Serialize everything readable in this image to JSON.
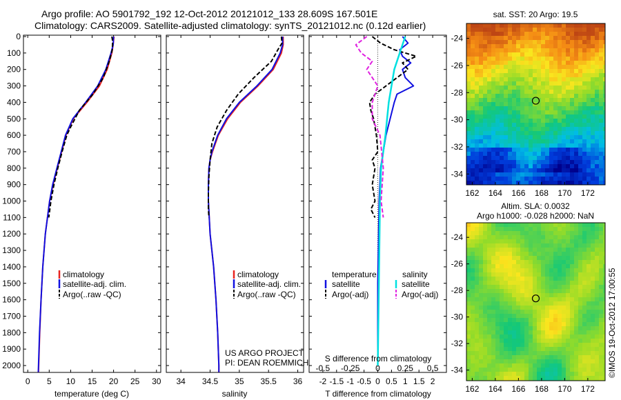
{
  "header": {
    "line1": "Argo profile: AO 5901792_192 12-Oct-2012 20121012_133 28.609S 167.501E",
    "line2": "Climatology: CARS2009. Satellite-adjusted climatology: synTS_20121012.nc (0.12d earlier)"
  },
  "colors": {
    "climatology": "#e8231f",
    "satellite": "#1010e0",
    "argo": "#000000",
    "salinity_sat": "#00e0e0",
    "salinity_argo": "#e020e0"
  },
  "chart_data": [
    {
      "type": "line",
      "id": "temperature",
      "xlabel": "temperature (deg C)",
      "ylabel": "",
      "xlim": [
        -1,
        31
      ],
      "ylim": [
        2060,
        0
      ],
      "xticks": [
        0,
        5,
        10,
        15,
        20,
        25,
        30
      ],
      "yticks": [
        0,
        100,
        200,
        300,
        400,
        500,
        600,
        700,
        800,
        900,
        1000,
        1100,
        1200,
        1300,
        1400,
        1500,
        1600,
        1700,
        1800,
        1900,
        2000
      ],
      "legend": [
        "climatology",
        "satellite-adj. clim.",
        "Argo(..raw -QC)"
      ],
      "series": [
        {
          "name": "climatology",
          "depth": [
            0,
            50,
            100,
            200,
            300,
            400,
            500,
            600,
            700,
            800,
            900,
            1000,
            1200,
            1400,
            1600,
            1800,
            2000,
            2040
          ],
          "values": [
            20.1,
            19.9,
            19.6,
            18.5,
            16.7,
            13.8,
            10.6,
            8.9,
            7.9,
            6.9,
            5.9,
            5.1,
            4.1,
            3.5,
            3.1,
            2.8,
            2.55,
            2.5
          ]
        },
        {
          "name": "satellite-adj. clim.",
          "depth": [
            0,
            50,
            100,
            200,
            300,
            400,
            500,
            600,
            700,
            800,
            900,
            1000,
            1200,
            1400,
            1600,
            1800,
            2000,
            2040
          ],
          "values": [
            20.0,
            19.9,
            19.4,
            18.2,
            16.3,
            13.5,
            10.5,
            8.8,
            7.8,
            6.8,
            5.8,
            5.1,
            4.1,
            3.5,
            3.1,
            2.75,
            2.5,
            2.45
          ]
        },
        {
          "name": "Argo(..raw -QC)",
          "depth": [
            0,
            30,
            80,
            150,
            250,
            350,
            450,
            500,
            550,
            600,
            700,
            800,
            900,
            1000,
            1100
          ],
          "values": [
            19.6,
            19.8,
            19.7,
            19.0,
            17.6,
            15.2,
            12.0,
            11.0,
            10.0,
            9.1,
            8.0,
            7.0,
            6.1,
            5.4,
            4.9
          ]
        }
      ]
    },
    {
      "type": "line",
      "id": "salinity",
      "xlabel": "salinity",
      "ylabel": "",
      "xlim": [
        33.75,
        36.1
      ],
      "ylim": [
        2060,
        0
      ],
      "xticks": [
        34,
        34.5,
        35,
        35.5,
        36
      ],
      "legend": [
        "climatology",
        "satellite-adj. clim.",
        "Argo(..raw -QC)"
      ],
      "series": [
        {
          "name": "climatology",
          "depth": [
            0,
            50,
            100,
            200,
            300,
            400,
            500,
            600,
            700,
            750,
            800,
            900,
            1000,
            1200,
            1400,
            1600,
            1800,
            2000,
            2040
          ],
          "values": [
            35.75,
            35.75,
            35.72,
            35.58,
            35.32,
            35.02,
            34.8,
            34.64,
            34.54,
            34.5,
            34.48,
            34.47,
            34.47,
            34.5,
            34.56,
            34.6,
            34.63,
            34.65,
            34.65
          ]
        },
        {
          "name": "satellite-adj. clim.",
          "depth": [
            0,
            50,
            100,
            200,
            300,
            400,
            500,
            600,
            700,
            750,
            800,
            900,
            1000,
            1200,
            1400,
            1600,
            1800,
            2000,
            2040
          ],
          "values": [
            35.74,
            35.74,
            35.7,
            35.56,
            35.3,
            35.0,
            34.78,
            34.63,
            34.53,
            34.5,
            34.48,
            34.47,
            34.47,
            34.5,
            34.56,
            34.6,
            34.63,
            34.65,
            34.65
          ]
        },
        {
          "name": "Argo(..raw -QC)",
          "depth": [
            0,
            40,
            80,
            150,
            250,
            350,
            450,
            550,
            650,
            750,
            850,
            950,
            1050,
            1100
          ],
          "values": [
            35.72,
            35.73,
            35.66,
            35.55,
            35.25,
            34.98,
            34.78,
            34.62,
            34.53,
            34.5,
            34.48,
            34.47,
            34.47,
            34.48
          ]
        }
      ],
      "annotations": [
        "US ARGO PROJECT",
        "PI: DEAN ROEMMICH"
      ]
    },
    {
      "type": "line",
      "id": "differences",
      "xlabel": "T difference from climatology",
      "xlabel2": "S difference from climatology",
      "xlim": [
        -2.5,
        2.5
      ],
      "xticks": [
        -2,
        -1.5,
        -1,
        -0.5,
        0,
        0.5,
        1,
        1.5,
        2
      ],
      "xticks2": [
        "-0.5",
        "-0.25",
        "0",
        "0.25",
        "0.5"
      ],
      "legend_headers": [
        "temperature",
        "salinity"
      ],
      "legend": [
        "satellite",
        "Argo(-adj)",
        "satellite",
        "Argo(-adj)"
      ],
      "series": [
        {
          "name": "satellite (T)",
          "depth": [
            0,
            40,
            80,
            120,
            160,
            200,
            250,
            300,
            350,
            400,
            500,
            600,
            700,
            800,
            1000,
            1500,
            2000
          ],
          "values": [
            0.9,
            1.1,
            0.8,
            0.9,
            1.2,
            0.9,
            1.0,
            1.3,
            0.7,
            0.6,
            0.45,
            0.3,
            0.2,
            0.1,
            0.05,
            0.0,
            0.0
          ]
        },
        {
          "name": "Argo(-adj) (T)",
          "depth": [
            0,
            40,
            80,
            120,
            160,
            200,
            250,
            300,
            350,
            400,
            450,
            500,
            550,
            600,
            700,
            750,
            800,
            900,
            1000,
            1050,
            1100
          ],
          "values": [
            -0.2,
            0.1,
            0.6,
            1.4,
            0.9,
            1.1,
            0.7,
            0.3,
            -0.1,
            -0.3,
            -0.25,
            -0.15,
            -0.1,
            -0.05,
            0.0,
            -0.2,
            -0.1,
            -0.2,
            -0.1,
            -0.25,
            -0.1
          ]
        },
        {
          "name": "satellite (S)",
          "depth": [
            0,
            100,
            200,
            400,
            600,
            800,
            1000,
            1500,
            2000
          ],
          "values": [
            0.25,
            0.2,
            0.15,
            0.1,
            0.07,
            0.03,
            0.02,
            0.01,
            0.0
          ]
        },
        {
          "name": "Argo(-adj) (S)",
          "depth": [
            0,
            50,
            100,
            150,
            200,
            300,
            400,
            500,
            600,
            800,
            1000,
            1100
          ],
          "values": [
            -0.1,
            -0.2,
            -0.15,
            -0.05,
            -0.1,
            0.0,
            -0.05,
            -0.05,
            0.02,
            0.05,
            0.03,
            0.05
          ]
        }
      ]
    },
    {
      "type": "heatmap",
      "id": "sst_map",
      "title": "sat. SST: 20 Argo: 19.5",
      "xlim": [
        161.5,
        173.5
      ],
      "ylim": [
        -34.8,
        -22.9
      ],
      "xticks": [
        162,
        164,
        166,
        168,
        170,
        172
      ],
      "yticks": [
        -24,
        -26,
        -28,
        -30,
        -32,
        -34
      ],
      "marker": {
        "lon": 167.5,
        "lat": -28.6
      }
    },
    {
      "type": "heatmap",
      "id": "sla_map",
      "title": "Altim. SLA: 0.0032",
      "subtitle": "Argo h1000: -0.028 h2000: NaN",
      "xlim": [
        161.5,
        173.5
      ],
      "ylim": [
        -34.8,
        -22.9
      ],
      "xticks": [
        162,
        164,
        166,
        168,
        170,
        172
      ],
      "yticks": [
        -24,
        -26,
        -28,
        -30,
        -32,
        -34
      ],
      "marker": {
        "lon": 167.5,
        "lat": -28.6
      }
    }
  ],
  "footer": {
    "imos": "©IMOS 19-Oct-2012 17:00:55"
  }
}
